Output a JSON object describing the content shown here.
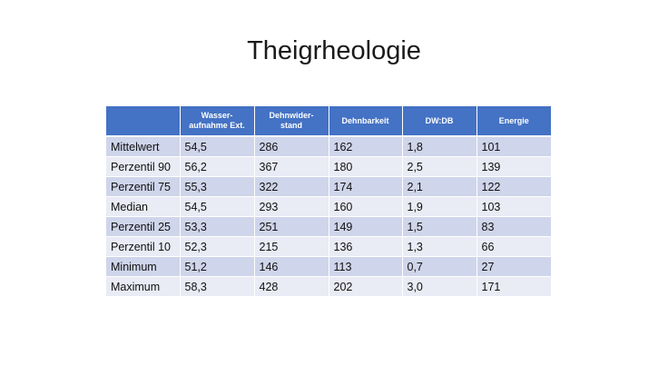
{
  "slide": {
    "title": "Theigrheologie"
  },
  "table": {
    "headers": [
      "",
      "Wasser-\naufnahme Ext.",
      "Dehnwider-\nstand",
      "Dehnbarkeit",
      "DW:DB",
      "Energie"
    ],
    "rows": [
      [
        "Mittelwert",
        "54,5",
        "286",
        "162",
        "1,8",
        "101"
      ],
      [
        "Perzentil 90",
        "56,2",
        "367",
        "180",
        "2,5",
        "139"
      ],
      [
        "Perzentil 75",
        "55,3",
        "322",
        "174",
        "2,1",
        "122"
      ],
      [
        "Median",
        "54,5",
        "293",
        "160",
        "1,9",
        "103"
      ],
      [
        "Perzentil 25",
        "53,3",
        "251",
        "149",
        "1,5",
        "83"
      ],
      [
        "Perzentil 10",
        "52,3",
        "215",
        "136",
        "1,3",
        "66"
      ],
      [
        "Minimum",
        "51,2",
        "146",
        "113",
        "0,7",
        "27"
      ],
      [
        "Maximum",
        "58,3",
        "428",
        "202",
        "3,0",
        "171"
      ]
    ]
  },
  "colors": {
    "header_bg": "#4472c4",
    "row_odd_bg": "#cfd5ea",
    "row_even_bg": "#e9ebf5"
  }
}
